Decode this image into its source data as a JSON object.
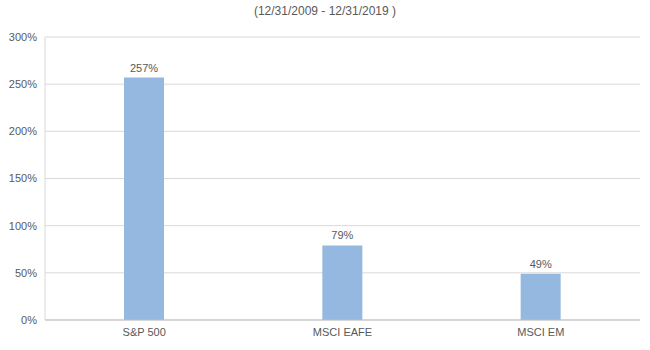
{
  "chart_data": {
    "type": "bar",
    "title": "(12/31/2009 - 12/31/2019 )",
    "categories": [
      "S&P 500",
      "MSCI EAFE",
      "MSCI EM"
    ],
    "values": [
      257,
      79,
      49
    ],
    "value_labels": [
      "257%",
      "79%",
      "49%"
    ],
    "color": "#95b8e0",
    "ylim": [
      0,
      300
    ],
    "yticks": [
      {
        "value": 0,
        "label": "0%"
      },
      {
        "value": 50,
        "label": "50%"
      },
      {
        "value": 100,
        "label": "100%"
      },
      {
        "value": 150,
        "label": "150%"
      },
      {
        "value": 200,
        "label": "200%"
      },
      {
        "value": 250,
        "label": "250%"
      },
      {
        "value": 300,
        "label": "300%"
      }
    ],
    "grid": true,
    "data_labels": true
  }
}
